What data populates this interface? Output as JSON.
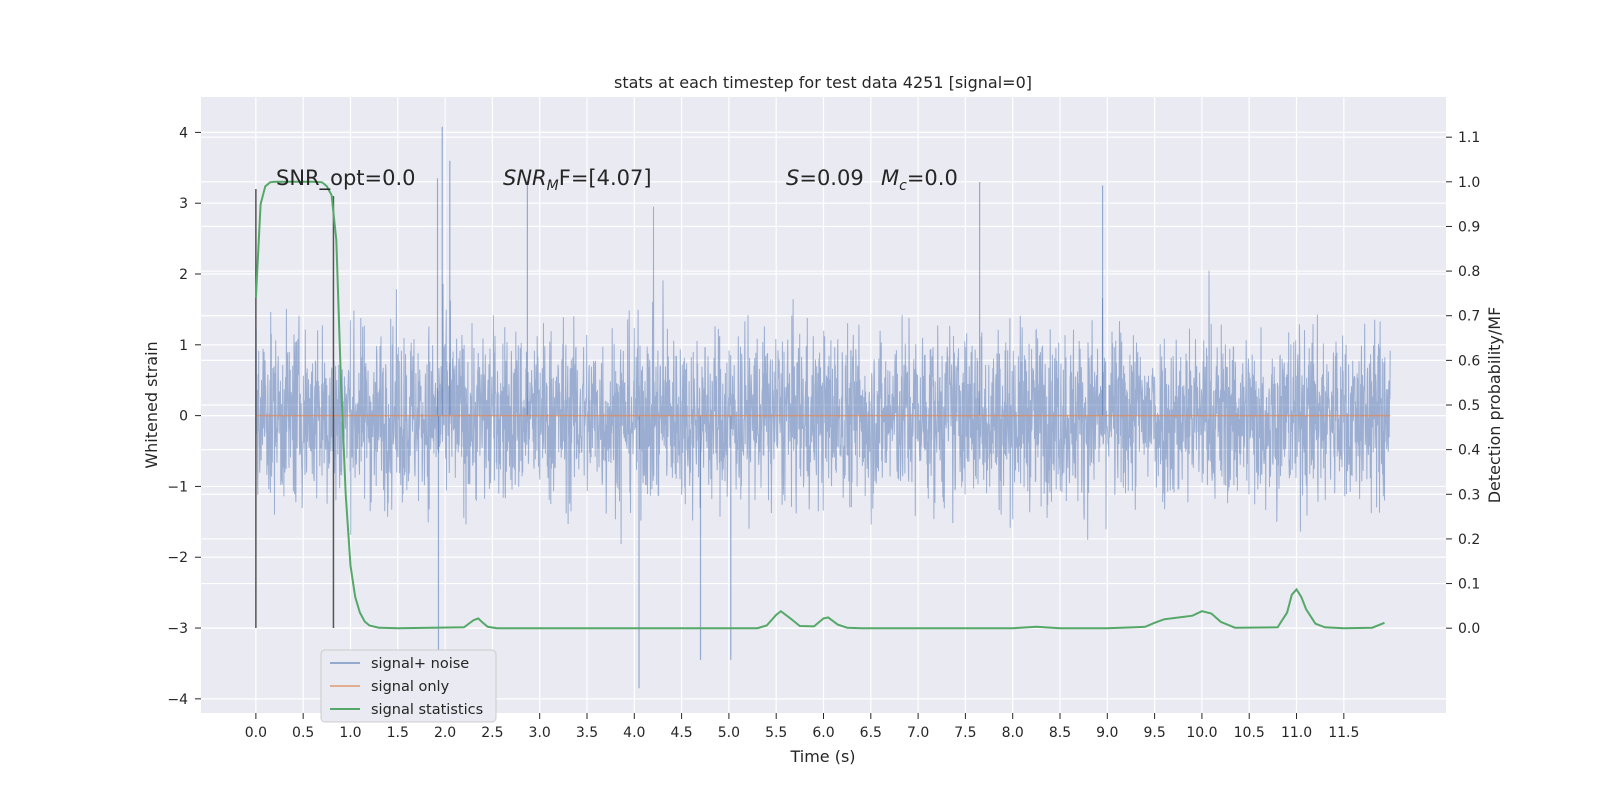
{
  "chart_data": {
    "type": "line",
    "title": "stats at each timestep for test data 4251 [signal=0]",
    "xlabel": "Time (s)",
    "ylabel_left": "Whitened strain",
    "ylabel_right": "Detection probability/MF",
    "xlim": [
      -0.58,
      12.58
    ],
    "ylim_left": [
      -4.2,
      4.5
    ],
    "ylim_right": [
      -0.19,
      1.19
    ],
    "xticks": [
      "0.0",
      "0.5",
      "1.0",
      "1.5",
      "2.0",
      "2.5",
      "3.0",
      "3.5",
      "4.0",
      "4.5",
      "5.0",
      "5.5",
      "6.0",
      "6.5",
      "7.0",
      "7.5",
      "8.0",
      "8.5",
      "9.0",
      "9.5",
      "10.0",
      "10.5",
      "11.0",
      "11.5"
    ],
    "yticks_left": [
      "−4",
      "−3",
      "−2",
      "−1",
      "0",
      "1",
      "2",
      "3",
      "4"
    ],
    "yticks_right": [
      "0.0",
      "0.1",
      "0.2",
      "0.3",
      "0.4",
      "0.5",
      "0.6",
      "0.7",
      "0.8",
      "0.9",
      "1.0",
      "1.1"
    ],
    "grid": true,
    "legend_position": "lower-left",
    "colors": {
      "background": "#eaeaf2",
      "grid": "#ffffff",
      "signal_noise": "#4c72b0",
      "signal_only": "#dd8452",
      "statistics": "#55a868",
      "markers": "#555555"
    },
    "annotations": {
      "snr_opt": "SNR_opt=0.0",
      "snr_mf_base": "SNR",
      "snr_mf_sub": "M",
      "snr_mf_rest": "F=[4.07]",
      "s_var": "S",
      "s_val": "=0.09",
      "mc_var": "M",
      "mc_sub": "c",
      "mc_val": "=0.0"
    },
    "vertical_markers": [
      {
        "x": 0.0,
        "y_from": -3.0,
        "y_to": 3.2
      },
      {
        "x": 0.82,
        "y_from": -3.0,
        "y_to": 3.1
      }
    ],
    "series": [
      {
        "name": "signal+ noise",
        "axis": "left",
        "style": "dense noise, 0–12 s",
        "x_range": [
          0.0,
          11.99
        ],
        "envelope": {
          "typical_high": 2.0,
          "typical_low": -1.8,
          "max": 4.08,
          "min": -3.85
        },
        "peaks": [
          {
            "x": 1.97,
            "y": 4.08
          },
          {
            "x": 1.92,
            "y": 3.35
          },
          {
            "x": 2.05,
            "y": 3.6
          },
          {
            "x": 2.87,
            "y": 3.3
          },
          {
            "x": 7.65,
            "y": 3.3
          },
          {
            "x": 8.95,
            "y": 3.25
          },
          {
            "x": 4.05,
            "y": -3.85
          },
          {
            "x": 4.7,
            "y": -3.45
          },
          {
            "x": 1.93,
            "y": -3.35
          },
          {
            "x": 5.02,
            "y": -3.45
          }
        ]
      },
      {
        "name": "signal only",
        "axis": "left",
        "x": [
          0.0,
          11.99
        ],
        "y": [
          0.0,
          0.0
        ]
      },
      {
        "name": "signal statistics",
        "axis": "right",
        "x": [
          0.0,
          0.05,
          0.1,
          0.15,
          0.2,
          0.3,
          0.4,
          0.5,
          0.6,
          0.7,
          0.75,
          0.8,
          0.85,
          0.9,
          0.95,
          1.0,
          1.05,
          1.1,
          1.15,
          1.2,
          1.3,
          1.5,
          2.2,
          2.3,
          2.35,
          2.4,
          2.45,
          2.55,
          3.0,
          5.3,
          5.4,
          5.5,
          5.55,
          5.65,
          5.75,
          5.9,
          6.0,
          6.05,
          6.15,
          6.25,
          6.4,
          7.5,
          8.0,
          8.25,
          8.5,
          9.0,
          9.4,
          9.5,
          9.6,
          9.75,
          9.9,
          10.0,
          10.1,
          10.2,
          10.35,
          10.8,
          10.9,
          10.95,
          11.0,
          11.05,
          11.1,
          11.2,
          11.3,
          11.5,
          11.8,
          11.93
        ],
        "y": [
          0.74,
          0.95,
          0.99,
          0.999,
          1.0,
          1.0,
          1.0,
          1.0,
          1.0,
          0.999,
          0.99,
          0.97,
          0.87,
          0.55,
          0.3,
          0.14,
          0.07,
          0.035,
          0.015,
          0.006,
          0.001,
          0.0,
          0.002,
          0.018,
          0.022,
          0.012,
          0.003,
          0.0,
          0.0,
          0.0,
          0.006,
          0.03,
          0.038,
          0.022,
          0.005,
          0.004,
          0.022,
          0.024,
          0.008,
          0.001,
          0.0,
          0.0,
          0.0,
          0.003,
          0.0,
          0.0,
          0.003,
          0.012,
          0.02,
          0.024,
          0.028,
          0.038,
          0.033,
          0.014,
          0.001,
          0.002,
          0.035,
          0.075,
          0.087,
          0.07,
          0.043,
          0.01,
          0.002,
          0.0,
          0.001,
          0.012
        ]
      }
    ]
  }
}
